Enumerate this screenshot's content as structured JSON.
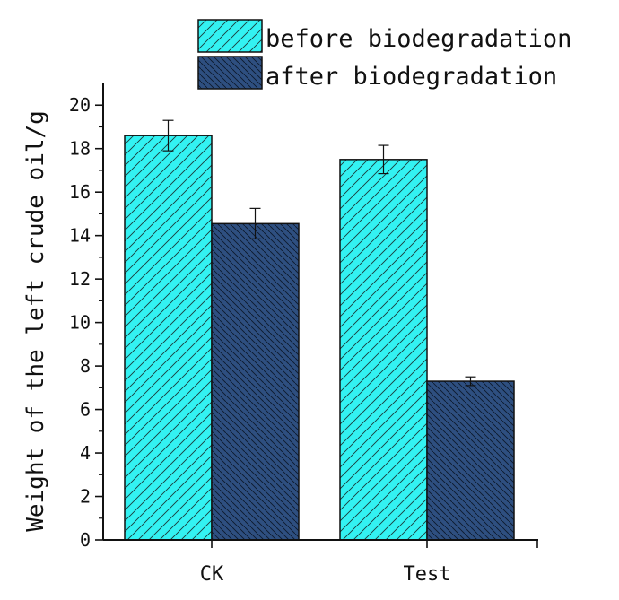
{
  "chart_data": {
    "type": "bar",
    "title": "",
    "xlabel": "",
    "ylabel": "Weight of the left crude oil/g",
    "categories": [
      "CK",
      "Test"
    ],
    "ylim": [
      0,
      21
    ],
    "yticks": [
      0,
      2,
      4,
      6,
      8,
      10,
      12,
      14,
      16,
      18,
      20
    ],
    "grid": false,
    "legend_position": "top",
    "series": [
      {
        "name": "before biodegradation",
        "values": [
          18.6,
          17.5
        ],
        "errors": [
          0.7,
          0.65
        ],
        "color": "#33f2f2",
        "hatch": "forward-diagonal"
      },
      {
        "name": "after biodegradation",
        "values": [
          14.55,
          7.3
        ],
        "errors": [
          0.7,
          0.2
        ],
        "color": "#2e4f80",
        "hatch": "back-diagonal"
      }
    ]
  }
}
